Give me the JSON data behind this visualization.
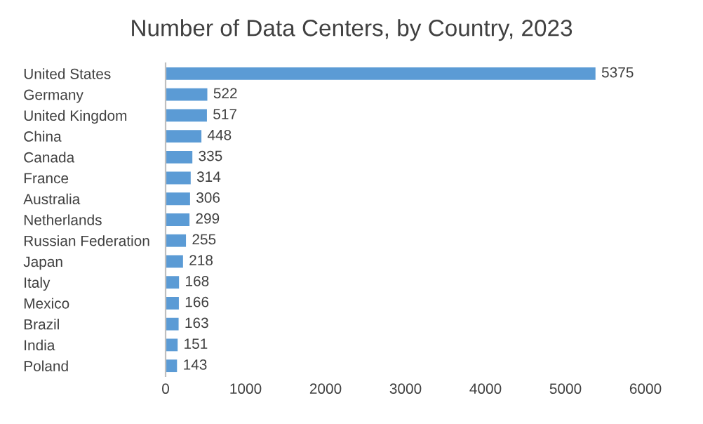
{
  "chart_data": {
    "type": "bar",
    "orientation": "horizontal",
    "title": "Number of Data Centers, by Country, 2023",
    "categories": [
      "United States",
      "Germany",
      "United Kingdom",
      "China",
      "Canada",
      "France",
      "Australia",
      "Netherlands",
      "Russian Federation",
      "Japan",
      "Italy",
      "Mexico",
      "Brazil",
      "India",
      "Poland"
    ],
    "values": [
      5375,
      522,
      517,
      448,
      335,
      314,
      306,
      299,
      255,
      218,
      168,
      166,
      163,
      151,
      143
    ],
    "color": "#5b9bd5",
    "xlim": [
      0,
      6000
    ],
    "xticks": [
      0,
      1000,
      2000,
      3000,
      4000,
      5000,
      6000
    ],
    "grid": false,
    "data_labels": true
  }
}
